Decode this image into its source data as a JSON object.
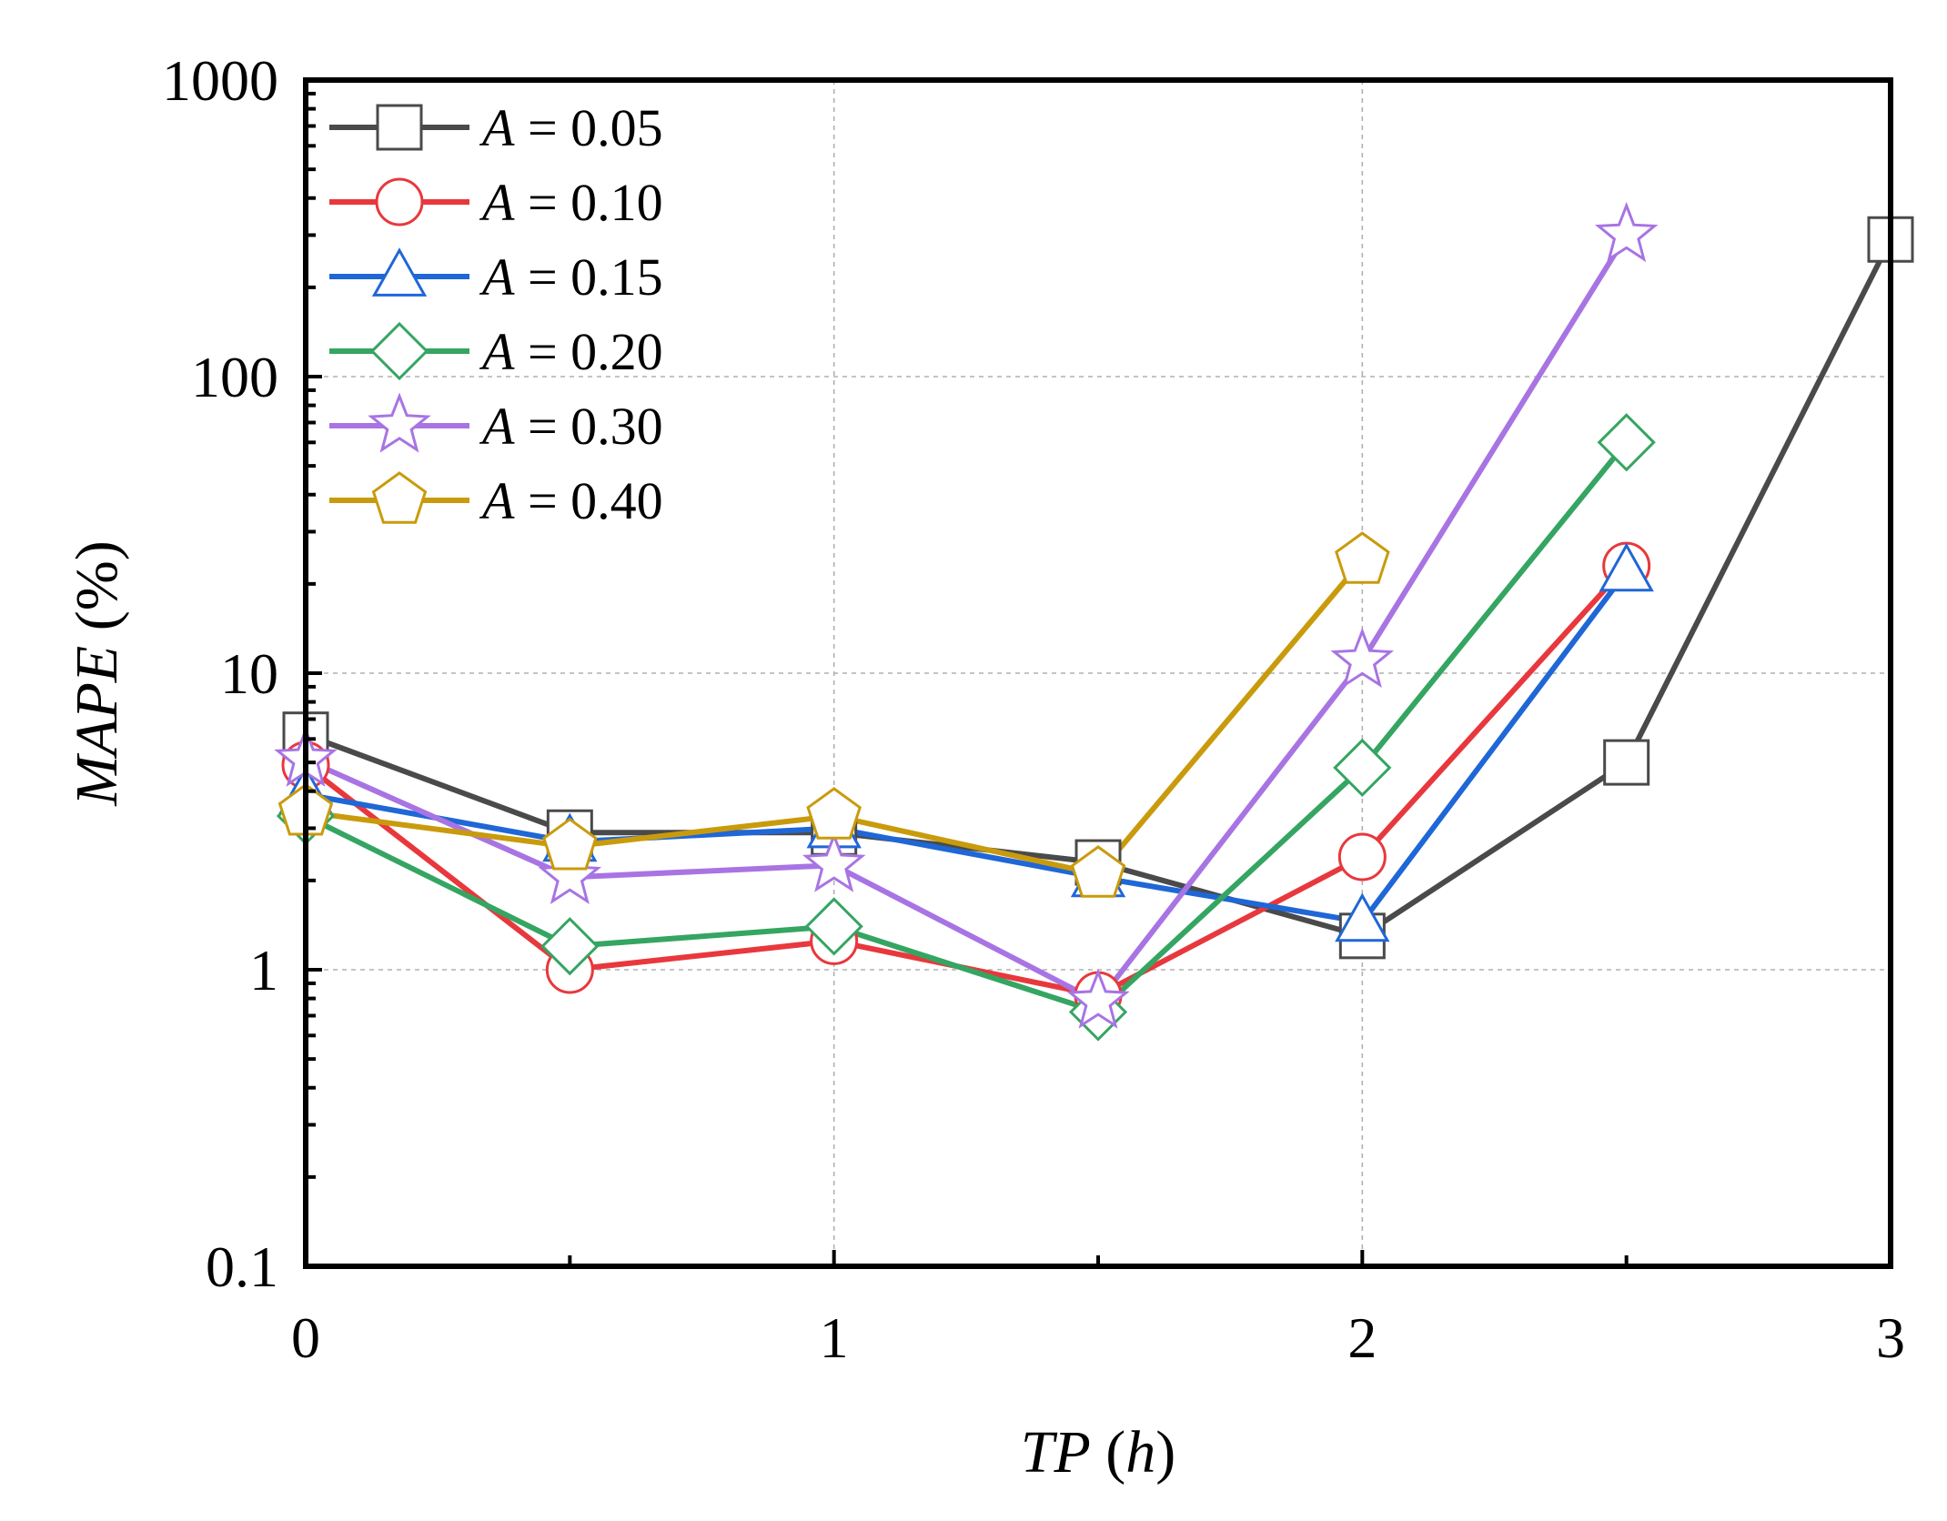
{
  "chart_data": {
    "type": "line",
    "title": "",
    "xlabel_parts": [
      {
        "text": "TP",
        "italic": true
      },
      {
        "text": " (",
        "italic": false
      },
      {
        "text": "h",
        "italic": true
      },
      {
        "text": ")",
        "italic": false
      }
    ],
    "ylabel_parts": [
      {
        "text": "MAPE",
        "italic": true
      },
      {
        "text": " (%)",
        "italic": false
      }
    ],
    "x_ticks": [
      "0",
      "1",
      "2",
      "3"
    ],
    "y_ticks": [
      "0.1",
      "1",
      "10",
      "100",
      "1000"
    ],
    "xlim": [
      0,
      3
    ],
    "ylim": [
      0.1,
      1000
    ],
    "yscale": "log",
    "grid": true,
    "legend_position": "top-left",
    "series": [
      {
        "name": "A = 0.05",
        "label_var": "A",
        "label_value": " = 0.05",
        "color": "#4a4a4a",
        "marker": "square",
        "x": [
          0,
          0.5,
          1,
          1.5,
          2,
          2.5,
          3
        ],
        "y": [
          6.2,
          2.9,
          2.9,
          2.3,
          1.3,
          5.0,
          290
        ]
      },
      {
        "name": "A = 0.10",
        "label_var": "A",
        "label_value": " = 0.10",
        "color": "#e8383d",
        "marker": "circle",
        "x": [
          0,
          0.5,
          1,
          1.5,
          2,
          2.5
        ],
        "y": [
          4.9,
          1.0,
          1.25,
          0.82,
          2.4,
          23
        ]
      },
      {
        "name": "A = 0.15",
        "label_var": "A",
        "label_value": " = 0.15",
        "color": "#1f67d6",
        "marker": "triangle",
        "x": [
          0,
          0.5,
          1,
          1.5,
          2,
          2.5
        ],
        "y": [
          3.9,
          2.7,
          3.0,
          2.05,
          1.45,
          22
        ]
      },
      {
        "name": "A = 0.20",
        "label_var": "A",
        "label_value": " = 0.20",
        "color": "#35a562",
        "marker": "diamond",
        "x": [
          0,
          0.5,
          1,
          1.5,
          2,
          2.5
        ],
        "y": [
          3.3,
          1.2,
          1.4,
          0.72,
          4.8,
          60
        ]
      },
      {
        "name": "A = 0.30",
        "label_var": "A",
        "label_value": " = 0.30",
        "color": "#a874e3",
        "marker": "star",
        "x": [
          0,
          0.5,
          1,
          1.5,
          2,
          2.5
        ],
        "y": [
          5.1,
          2.05,
          2.25,
          0.78,
          11,
          300
        ]
      },
      {
        "name": "A = 0.40",
        "label_var": "A",
        "label_value": " = 0.40",
        "color": "#c99b0c",
        "marker": "pentagon",
        "x": [
          0,
          0.5,
          1,
          1.5,
          2
        ],
        "y": [
          3.4,
          2.6,
          3.3,
          2.1,
          24
        ]
      }
    ]
  }
}
